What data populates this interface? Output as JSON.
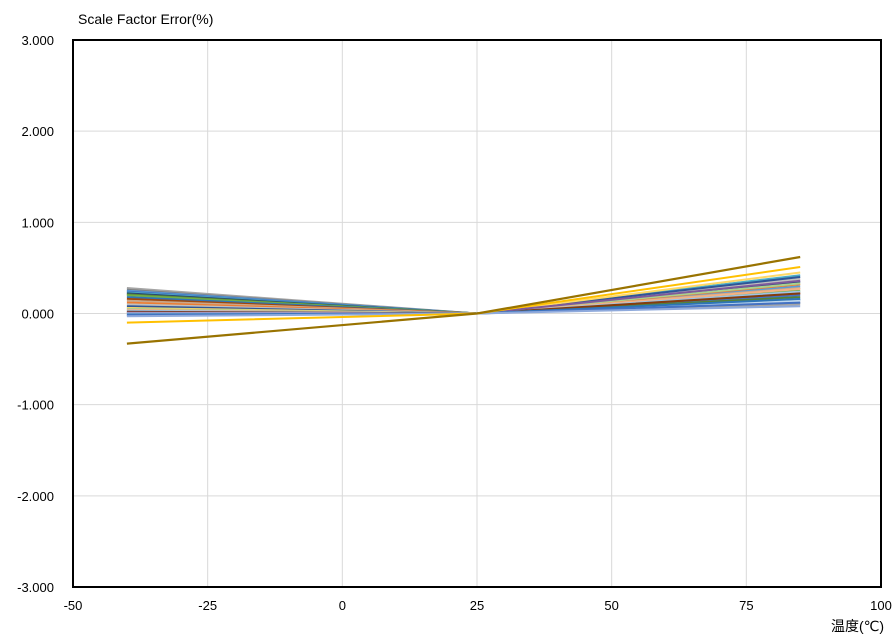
{
  "chart_data": {
    "type": "line",
    "title": "",
    "ylabel": "Scale Factor Error(%)",
    "xlabel": "温度(℃)",
    "xlim": [
      -50,
      100
    ],
    "ylim": [
      -3,
      3
    ],
    "x_ticks": [
      -50,
      -25,
      0,
      25,
      50,
      75,
      100
    ],
    "x_tick_labels": [
      "-50",
      "-25",
      "0",
      "25",
      "50",
      "75",
      "100"
    ],
    "y_ticks": [
      -3,
      -2,
      -1,
      0,
      1,
      2,
      3
    ],
    "y_tick_labels": [
      "-3.000",
      "-2.000",
      "-1.000",
      "0.000",
      "1.000",
      "2.000",
      "3.000"
    ],
    "grid": true,
    "legend": "none",
    "x": [
      -40,
      25,
      85
    ],
    "series": [
      {
        "values": [
          0.28,
          0,
          0.1
        ],
        "color": "#a5a5a5"
      },
      {
        "values": [
          0.26,
          0,
          0.12
        ],
        "color": "#7f7f7f"
      },
      {
        "values": [
          0.25,
          0,
          0.3
        ],
        "color": "#5b9bd5"
      },
      {
        "values": [
          0.24,
          0,
          0.2
        ],
        "color": "#4472c4"
      },
      {
        "values": [
          0.23,
          0,
          0.42
        ],
        "color": "#4bacc6"
      },
      {
        "values": [
          0.22,
          0,
          0.35
        ],
        "color": "#264478"
      },
      {
        "values": [
          0.21,
          0,
          0.18
        ],
        "color": "#548235"
      },
      {
        "values": [
          0.2,
          0,
          0.25
        ],
        "color": "#70ad47"
      },
      {
        "values": [
          0.18,
          0,
          0.15
        ],
        "color": "#2e75b6"
      },
      {
        "values": [
          0.16,
          0,
          0.22
        ],
        "color": "#9e480e"
      },
      {
        "values": [
          0.14,
          0,
          0.28
        ],
        "color": "#c9a78b"
      },
      {
        "values": [
          0.12,
          0,
          0.32
        ],
        "color": "#ed7d31"
      },
      {
        "values": [
          0.1,
          0,
          0.38
        ],
        "color": "#bfbfbf"
      },
      {
        "values": [
          0.08,
          0,
          0.4
        ],
        "color": "#2f5597"
      },
      {
        "values": [
          0.06,
          0,
          0.45
        ],
        "color": "#ffd966"
      },
      {
        "values": [
          0.05,
          0,
          0.33
        ],
        "color": "#a9d18e"
      },
      {
        "values": [
          0.04,
          0,
          0.27
        ],
        "color": "#f4b183"
      },
      {
        "values": [
          0.03,
          0,
          0.24
        ],
        "color": "#9dc3e6"
      },
      {
        "values": [
          0.02,
          0,
          0.22
        ],
        "color": "#843c0c"
      },
      {
        "values": [
          0.01,
          0,
          0.36
        ],
        "color": "#7e5a9b"
      },
      {
        "values": [
          0.0,
          0,
          0.14
        ],
        "color": "#bdd7ee"
      },
      {
        "values": [
          -0.01,
          0,
          0.16
        ],
        "color": "#2e75b6"
      },
      {
        "values": [
          -0.02,
          0,
          0.12
        ],
        "color": "#4472c4"
      },
      {
        "values": [
          -0.03,
          0,
          0.08
        ],
        "color": "#8faadc"
      },
      {
        "values": [
          -0.1,
          0,
          0.51
        ],
        "color": "#ffc000"
      },
      {
        "values": [
          -0.33,
          0,
          0.62
        ],
        "color": "#997300"
      }
    ]
  }
}
